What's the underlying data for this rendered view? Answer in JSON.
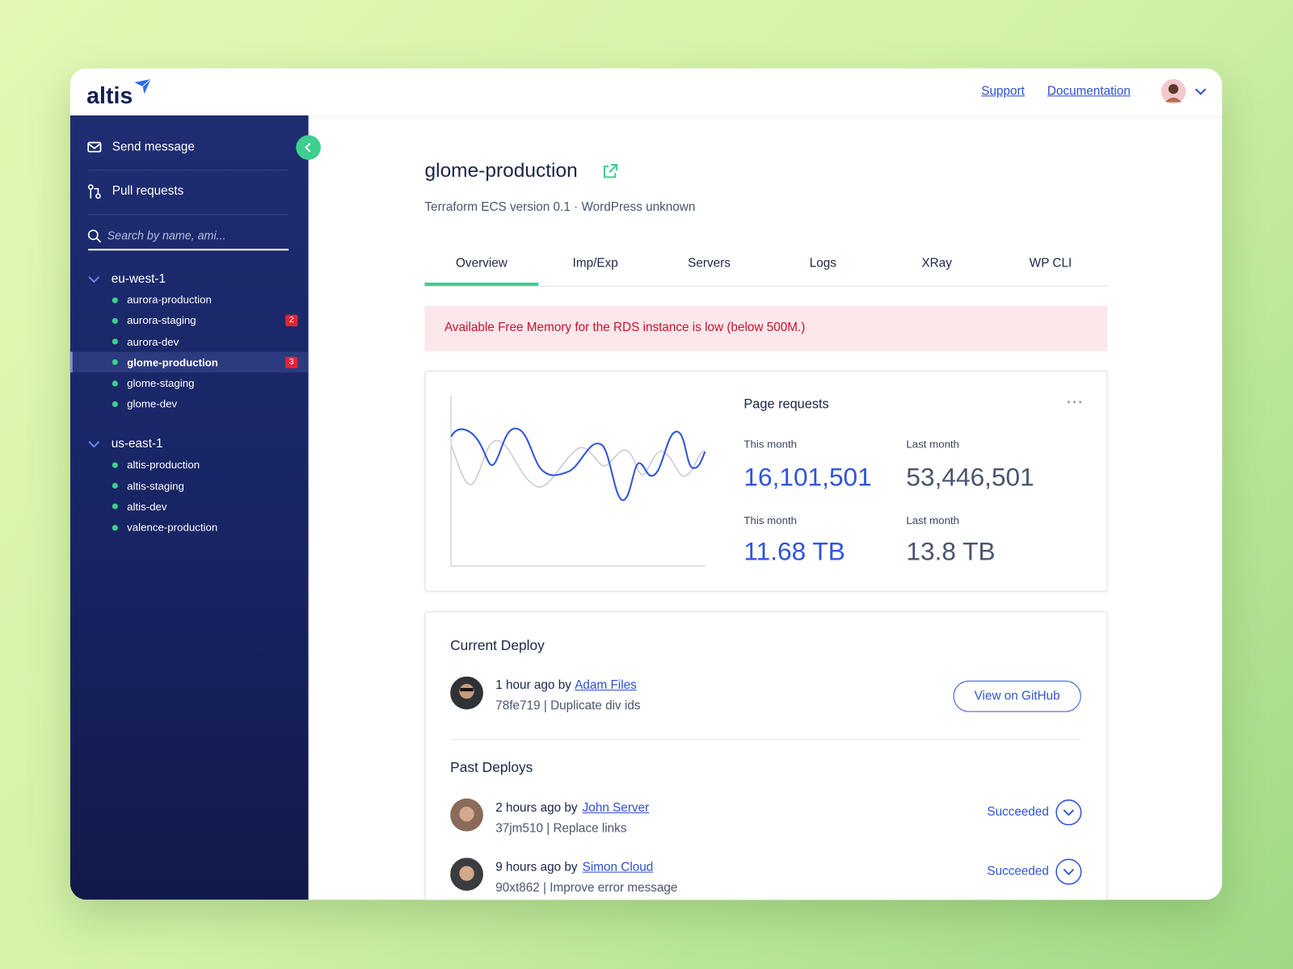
{
  "header": {
    "logo": "altis",
    "links": [
      "Support",
      "Documentation"
    ]
  },
  "sidebar": {
    "nav": [
      "Send message",
      "Pull requests"
    ],
    "search_placeholder": "Search by name, ami...",
    "regions": [
      {
        "name": "eu-west-1",
        "sites": [
          {
            "name": "aurora-production"
          },
          {
            "name": "aurora-staging",
            "badge": 2
          },
          {
            "name": "aurora-dev"
          },
          {
            "name": "glome-production",
            "badge": 3,
            "selected": true
          },
          {
            "name": "glome-staging"
          },
          {
            "name": "glome-dev"
          }
        ]
      },
      {
        "name": "us-east-1",
        "sites": [
          {
            "name": "altis-production"
          },
          {
            "name": "altis-staging"
          },
          {
            "name": "altis-dev"
          },
          {
            "name": "valence-production"
          }
        ]
      }
    ]
  },
  "page": {
    "title": "glome-production",
    "subtitle": "Terraform ECS version 0.1 · WordPress unknown",
    "tabs": [
      {
        "label": "Overview",
        "selected": true
      },
      {
        "label": "Imp/Exp"
      },
      {
        "label": "Servers"
      },
      {
        "label": "Logs"
      },
      {
        "label": "XRay"
      },
      {
        "label": "WP CLI"
      }
    ],
    "alert": "Available Free Memory for the RDS instance is low (below 500M.)",
    "stats": {
      "title": "Page requests",
      "items": [
        {
          "label": "This month",
          "value": "16,101,501"
        },
        {
          "label": "Last month",
          "value": "53,446,501"
        },
        {
          "label": "This month",
          "value": "11.68 TB"
        },
        {
          "label": "Last month",
          "value": "13.8 TB"
        }
      ]
    },
    "deploys": {
      "current_title": "Current Deploy",
      "current": {
        "time": "1 hour ago by",
        "author": "Adam Files",
        "commit": "78fe719 | Duplicate div ids"
      },
      "button": "View on GitHub",
      "past_title": "Past Deploys",
      "past": [
        {
          "time": "2 hours ago by",
          "author": "John Server",
          "commit": "37jm510 | Replace links",
          "status": "Succeeded"
        },
        {
          "time": "9 hours ago by",
          "author": "Simon Cloud",
          "commit": "90xt862 | Improve error message",
          "status": "Succeeded"
        }
      ]
    }
  }
}
